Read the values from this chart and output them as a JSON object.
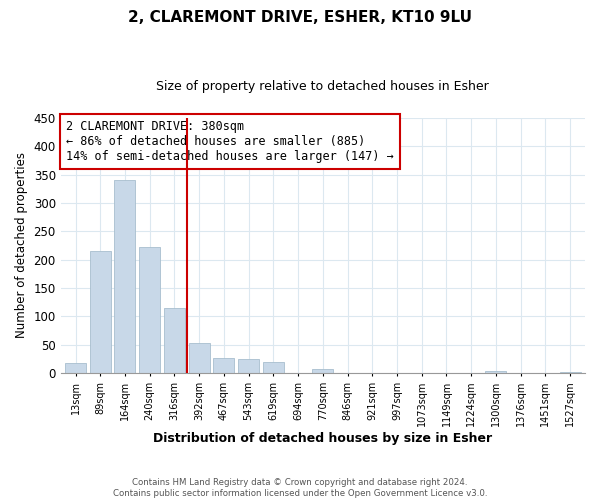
{
  "title": "2, CLAREMONT DRIVE, ESHER, KT10 9LU",
  "subtitle": "Size of property relative to detached houses in Esher",
  "xlabel": "Distribution of detached houses by size in Esher",
  "ylabel": "Number of detached properties",
  "bar_labels": [
    "13sqm",
    "89sqm",
    "164sqm",
    "240sqm",
    "316sqm",
    "392sqm",
    "467sqm",
    "543sqm",
    "619sqm",
    "694sqm",
    "770sqm",
    "846sqm",
    "921sqm",
    "997sqm",
    "1073sqm",
    "1149sqm",
    "1224sqm",
    "1300sqm",
    "1376sqm",
    "1451sqm",
    "1527sqm"
  ],
  "bar_values": [
    18,
    215,
    340,
    222,
    114,
    54,
    26,
    25,
    20,
    0,
    7,
    0,
    0,
    0,
    0,
    0,
    0,
    3,
    0,
    0,
    2
  ],
  "bar_color": "#c8d8e8",
  "bar_edge_color": "#a8bece",
  "vline_x_index": 5,
  "vline_color": "#cc0000",
  "annotation_title": "2 CLAREMONT DRIVE: 380sqm",
  "annotation_line1": "← 86% of detached houses are smaller (885)",
  "annotation_line2": "14% of semi-detached houses are larger (147) →",
  "annotation_box_color": "white",
  "annotation_box_edge_color": "#cc0000",
  "ylim": [
    0,
    450
  ],
  "yticks": [
    0,
    50,
    100,
    150,
    200,
    250,
    300,
    350,
    400,
    450
  ],
  "footer1": "Contains HM Land Registry data © Crown copyright and database right 2024.",
  "footer2": "Contains public sector information licensed under the Open Government Licence v3.0.",
  "bg_color": "#ffffff",
  "grid_color": "#dce8f0",
  "title_fontsize": 11,
  "subtitle_fontsize": 9
}
